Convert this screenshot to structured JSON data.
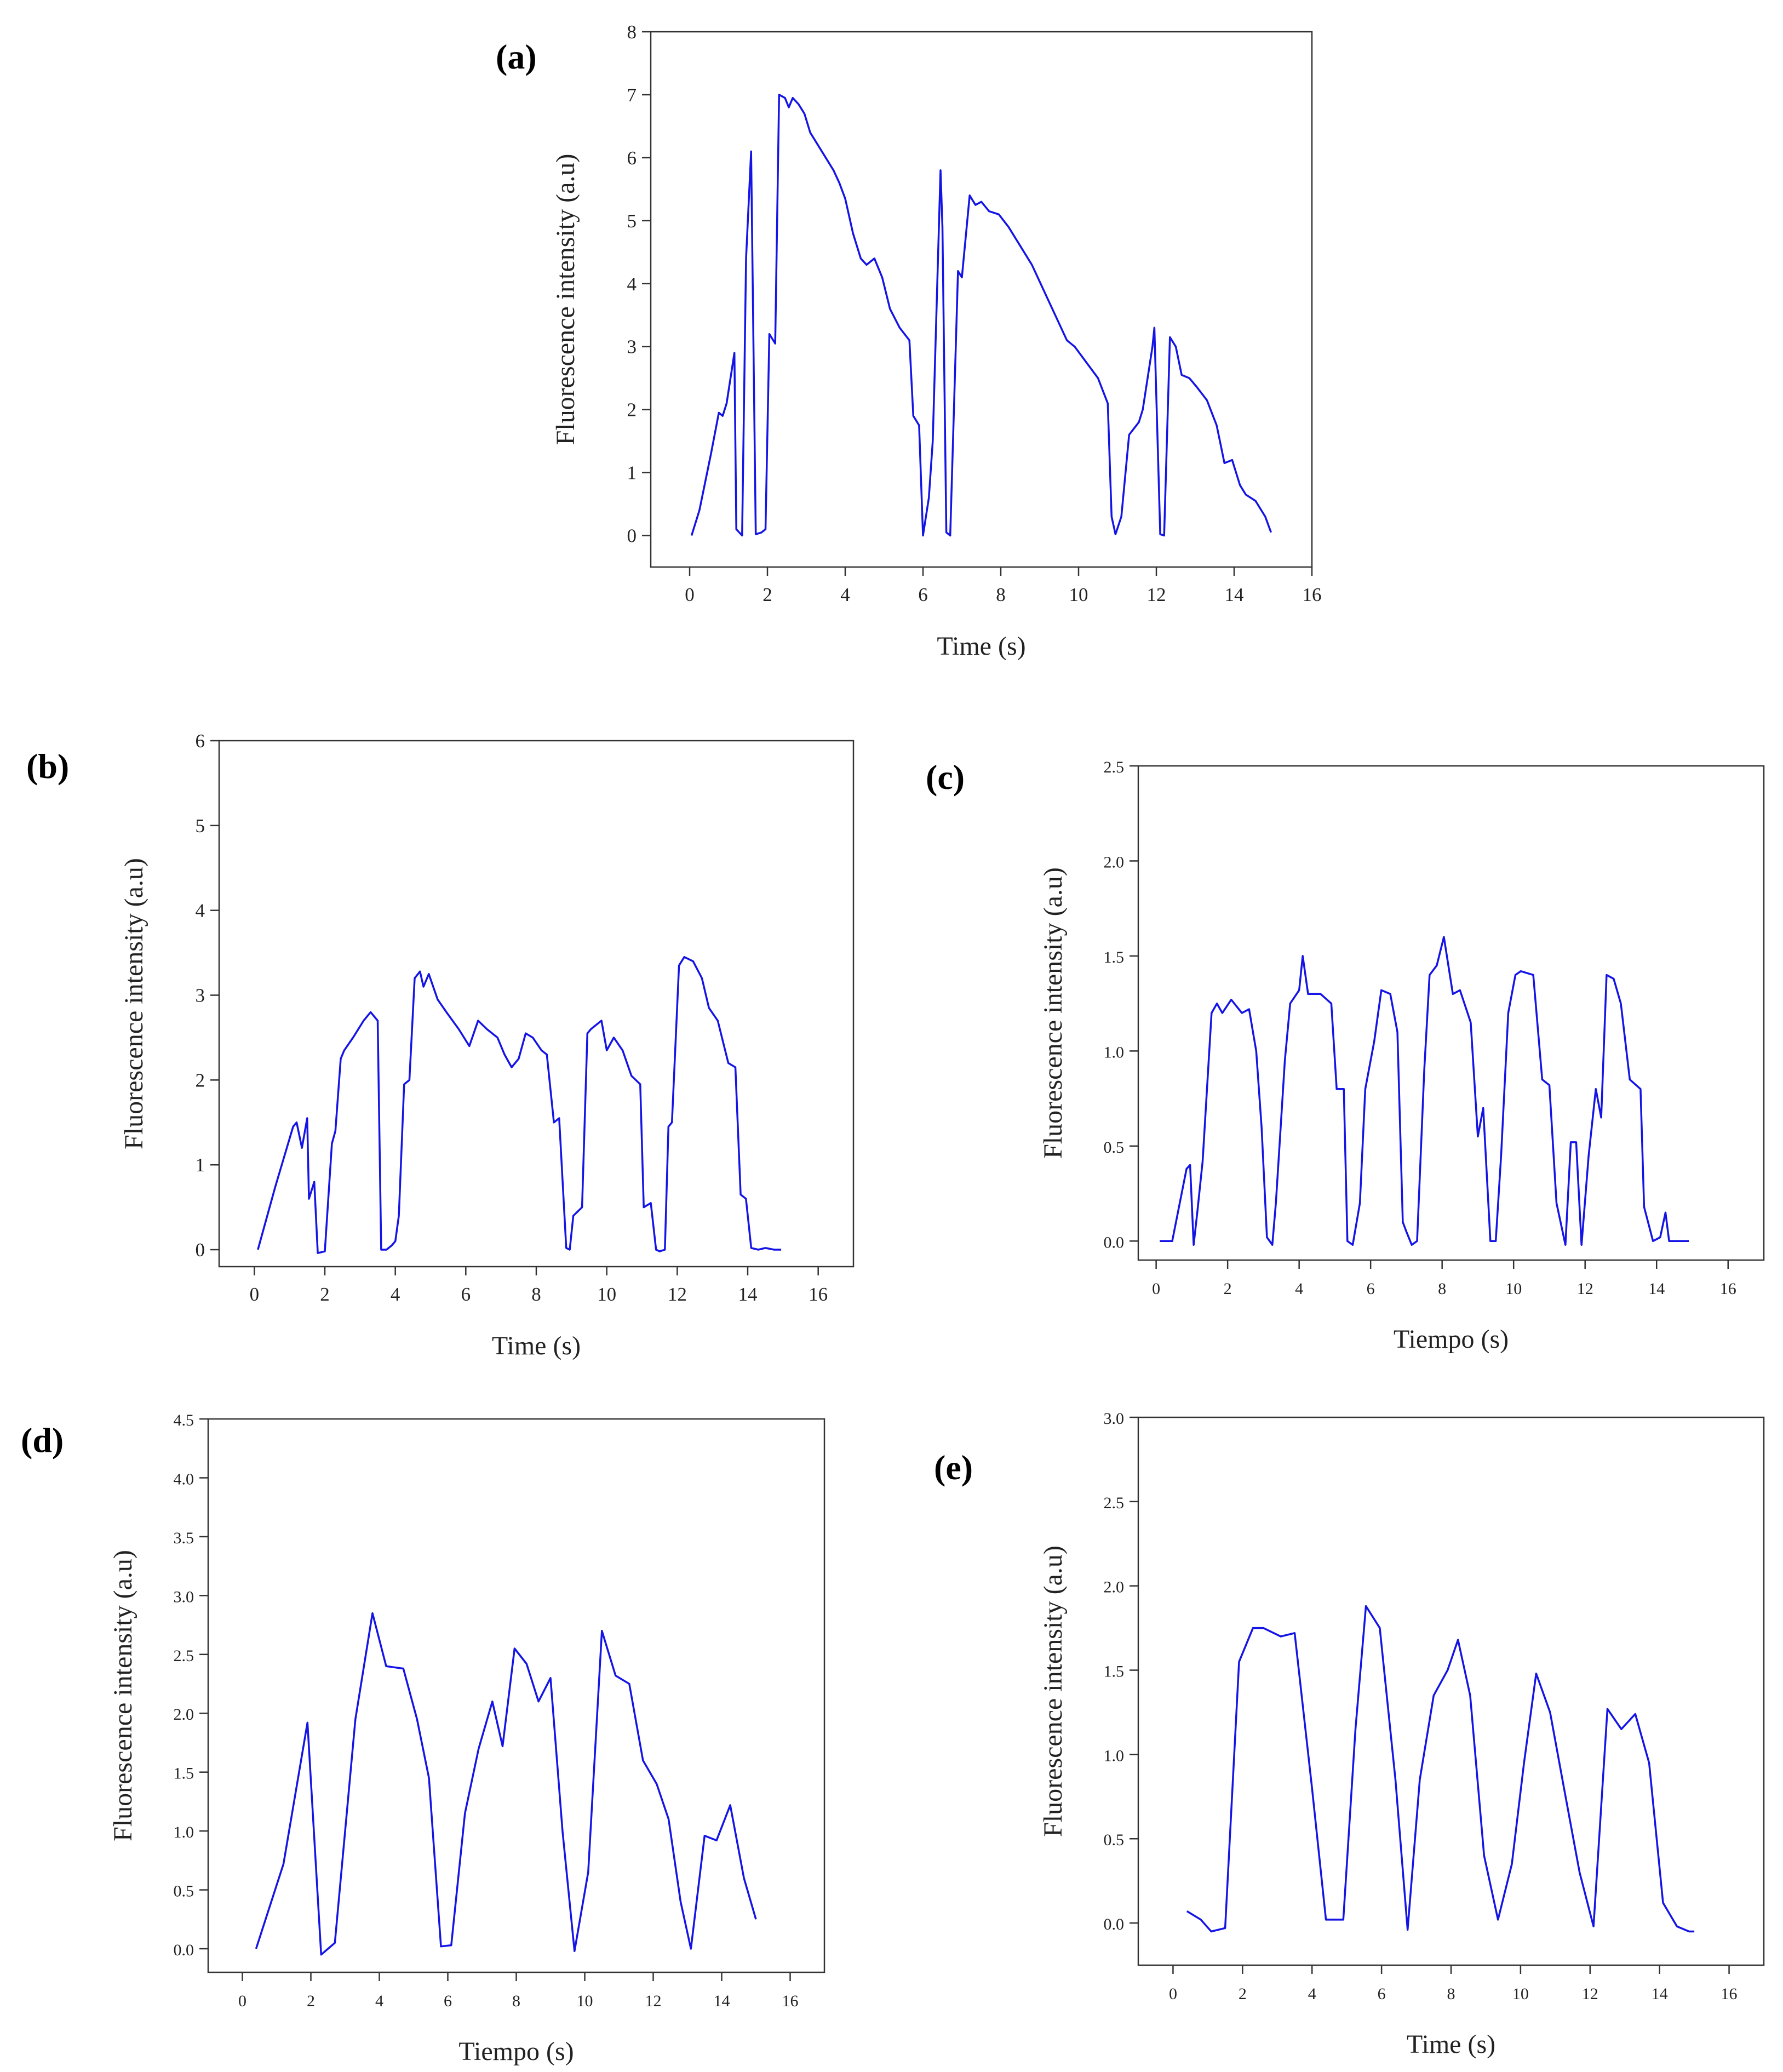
{
  "figure": {
    "line_color": "#1414e6",
    "frame_color": "#333333"
  },
  "chart_data": [
    {
      "id": "a",
      "panel_label": "(a)",
      "type": "line",
      "xlabel": "Time (s)",
      "ylabel": "Fluorescence intensity (a.u)",
      "xlim": [
        -1,
        16
      ],
      "ylim": [
        -0.5,
        8
      ],
      "xticks": [
        0,
        2,
        4,
        6,
        8,
        10,
        12,
        14,
        16
      ],
      "xtick_labels": [
        "0",
        "2",
        "4",
        "6",
        "8",
        "10",
        "12",
        "14",
        "16"
      ],
      "yticks": [
        0,
        1,
        2,
        3,
        4,
        5,
        6,
        7,
        8
      ],
      "ytick_labels": [
        "0",
        "1",
        "2",
        "3",
        "4",
        "5",
        "6",
        "7",
        "8"
      ],
      "x": [
        0.05,
        0.25,
        0.55,
        0.75,
        0.85,
        0.95,
        1.15,
        1.2,
        1.35,
        1.45,
        1.58,
        1.7,
        1.85,
        1.95,
        2.05,
        2.2,
        2.3,
        2.45,
        2.55,
        2.65,
        2.8,
        2.95,
        3.1,
        3.3,
        3.5,
        3.7,
        3.85,
        4.0,
        4.2,
        4.4,
        4.55,
        4.75,
        4.95,
        5.15,
        5.4,
        5.65,
        5.75,
        5.9,
        6.0,
        6.15,
        6.25,
        6.45,
        6.5,
        6.6,
        6.7,
        6.9,
        7.0,
        7.2,
        7.35,
        7.5,
        7.7,
        7.95,
        8.2,
        8.5,
        8.8,
        9.1,
        9.4,
        9.7,
        9.9,
        10.2,
        10.5,
        10.75,
        10.85,
        10.95,
        11.1,
        11.3,
        11.55,
        11.65,
        11.9,
        11.95,
        12.1,
        12.2,
        12.35,
        12.5,
        12.65,
        12.85,
        13.05,
        13.3,
        13.55,
        13.75,
        13.95,
        14.15,
        14.3,
        14.55,
        14.8,
        14.95
      ],
      "y": [
        0.0,
        0.4,
        1.3,
        1.95,
        1.9,
        2.1,
        2.9,
        0.1,
        0.0,
        4.4,
        6.1,
        0.02,
        0.05,
        0.1,
        3.2,
        3.05,
        7.0,
        6.95,
        6.8,
        6.95,
        6.85,
        6.7,
        6.4,
        6.2,
        6.0,
        5.8,
        5.6,
        5.35,
        4.8,
        4.4,
        4.3,
        4.4,
        4.1,
        3.6,
        3.3,
        3.1,
        1.9,
        1.75,
        0.0,
        0.6,
        1.5,
        5.8,
        4.9,
        0.05,
        0.0,
        4.2,
        4.1,
        5.4,
        5.25,
        5.3,
        5.15,
        5.1,
        4.9,
        4.6,
        4.3,
        3.9,
        3.5,
        3.1,
        3.0,
        2.75,
        2.5,
        2.1,
        0.3,
        0.02,
        0.3,
        1.6,
        1.8,
        2.0,
        3.0,
        3.3,
        0.02,
        0.0,
        3.15,
        3.0,
        2.55,
        2.5,
        2.35,
        2.15,
        1.75,
        1.15,
        1.2,
        0.8,
        0.65,
        0.55,
        0.3,
        0.05
      ]
    },
    {
      "id": "b",
      "panel_label": "(b)",
      "type": "line",
      "xlabel": "Time (s)",
      "ylabel": "Fluorescence intensity (a.u)",
      "xlim": [
        -1,
        17
      ],
      "ylim": [
        -0.2,
        6
      ],
      "xticks": [
        0,
        2,
        4,
        6,
        8,
        10,
        12,
        14,
        16
      ],
      "xtick_labels": [
        "0",
        "2",
        "4",
        "6",
        "8",
        "10",
        "12",
        "14",
        "16"
      ],
      "yticks": [
        0,
        1,
        2,
        3,
        4,
        5,
        6
      ],
      "ytick_labels": [
        "0",
        "1",
        "2",
        "3",
        "4",
        "5",
        "6"
      ],
      "x": [
        0.1,
        0.6,
        1.1,
        1.2,
        1.35,
        1.5,
        1.55,
        1.7,
        1.8,
        2.0,
        2.2,
        2.3,
        2.45,
        2.55,
        2.8,
        3.1,
        3.3,
        3.5,
        3.6,
        3.75,
        3.9,
        4.0,
        4.1,
        4.25,
        4.4,
        4.55,
        4.7,
        4.8,
        4.95,
        5.2,
        5.45,
        5.8,
        6.1,
        6.35,
        6.6,
        6.9,
        7.1,
        7.3,
        7.5,
        7.7,
        7.9,
        8.15,
        8.3,
        8.5,
        8.65,
        8.85,
        8.95,
        9.05,
        9.3,
        9.45,
        9.55,
        9.85,
        10.0,
        10.2,
        10.45,
        10.7,
        10.95,
        11.05,
        11.25,
        11.4,
        11.5,
        11.65,
        11.75,
        11.85,
        12.05,
        12.2,
        12.45,
        12.7,
        12.9,
        13.15,
        13.45,
        13.65,
        13.8,
        13.95,
        14.1,
        14.3,
        14.5,
        14.75,
        14.95
      ],
      "y": [
        0.0,
        0.75,
        1.45,
        1.5,
        1.2,
        1.55,
        0.6,
        0.8,
        -0.04,
        -0.02,
        1.25,
        1.4,
        2.25,
        2.35,
        2.5,
        2.7,
        2.8,
        2.7,
        0.0,
        0.0,
        0.05,
        0.1,
        0.4,
        1.95,
        2.0,
        3.2,
        3.28,
        3.1,
        3.25,
        2.95,
        2.8,
        2.6,
        2.4,
        2.7,
        2.6,
        2.5,
        2.3,
        2.15,
        2.25,
        2.55,
        2.5,
        2.35,
        2.3,
        1.5,
        1.55,
        0.02,
        0.0,
        0.4,
        0.5,
        2.55,
        2.6,
        2.7,
        2.35,
        2.5,
        2.35,
        2.05,
        1.95,
        0.5,
        0.55,
        0.0,
        -0.02,
        0.0,
        1.45,
        1.5,
        3.35,
        3.45,
        3.4,
        3.2,
        2.85,
        2.7,
        2.2,
        2.15,
        0.65,
        0.6,
        0.02,
        0.0,
        0.02,
        0.0,
        0.0
      ]
    },
    {
      "id": "c",
      "panel_label": "(c)",
      "type": "line",
      "xlabel": "Tiempo (s)",
      "ylabel": "Fluorescence intensity (a.u)",
      "xlim": [
        -0.5,
        17
      ],
      "ylim": [
        -0.1,
        2.5
      ],
      "xticks": [
        0,
        2,
        4,
        6,
        8,
        10,
        12,
        14,
        16
      ],
      "xtick_labels": [
        "0",
        "2",
        "4",
        "6",
        "8",
        "10",
        "12",
        "14",
        "16"
      ],
      "yticks": [
        0.0,
        0.5,
        1.0,
        1.5,
        2.0,
        2.5
      ],
      "ytick_labels": [
        "0.0",
        "0.5",
        "1.0",
        "1.5",
        "2.0",
        "2.5"
      ],
      "x": [
        0.1,
        0.45,
        0.85,
        0.95,
        1.05,
        1.15,
        1.3,
        1.55,
        1.7,
        1.85,
        2.1,
        2.4,
        2.6,
        2.8,
        2.95,
        3.1,
        3.25,
        3.35,
        3.45,
        3.6,
        3.75,
        4.0,
        4.1,
        4.25,
        4.6,
        4.9,
        5.05,
        5.25,
        5.35,
        5.5,
        5.7,
        5.85,
        6.1,
        6.3,
        6.55,
        6.75,
        6.9,
        7.0,
        7.15,
        7.3,
        7.5,
        7.65,
        7.85,
        8.05,
        8.3,
        8.5,
        8.8,
        9.0,
        9.15,
        9.35,
        9.5,
        9.65,
        9.85,
        10.05,
        10.2,
        10.55,
        10.8,
        11.0,
        11.2,
        11.45,
        11.6,
        11.75,
        11.9,
        12.1,
        12.3,
        12.45,
        12.6,
        12.8,
        13.0,
        13.25,
        13.55,
        13.65,
        13.9,
        14.1,
        14.25,
        14.35,
        14.6,
        14.9
      ],
      "y": [
        0.0,
        0.0,
        0.38,
        0.4,
        -0.02,
        0.15,
        0.42,
        1.2,
        1.25,
        1.2,
        1.27,
        1.2,
        1.22,
        1.0,
        0.6,
        0.02,
        -0.02,
        0.2,
        0.5,
        0.95,
        1.25,
        1.32,
        1.5,
        1.3,
        1.3,
        1.25,
        0.8,
        0.8,
        0.0,
        -0.02,
        0.2,
        0.8,
        1.05,
        1.32,
        1.3,
        1.1,
        0.1,
        0.05,
        -0.02,
        0.0,
        0.9,
        1.4,
        1.45,
        1.6,
        1.3,
        1.32,
        1.15,
        0.55,
        0.7,
        0.0,
        0.0,
        0.45,
        1.2,
        1.4,
        1.42,
        1.4,
        0.85,
        0.82,
        0.2,
        -0.02,
        0.52,
        0.52,
        -0.02,
        0.45,
        0.8,
        0.65,
        1.4,
        1.38,
        1.25,
        0.85,
        0.8,
        0.18,
        0.0,
        0.02,
        0.15,
        0.0,
        0.0,
        0.0
      ]
    },
    {
      "id": "d",
      "panel_label": "(d)",
      "type": "line",
      "xlabel": "Tiempo (s)",
      "ylabel": "Fluorescence intensity (a.u)",
      "xlim": [
        -1,
        17
      ],
      "ylim": [
        -0.2,
        4.5
      ],
      "xticks": [
        0,
        2,
        4,
        6,
        8,
        10,
        12,
        14,
        16
      ],
      "xtick_labels": [
        "0",
        "2",
        "4",
        "6",
        "8",
        "10",
        "12",
        "14",
        "16"
      ],
      "yticks": [
        0.0,
        0.5,
        1.0,
        1.5,
        2.0,
        2.5,
        3.0,
        3.5,
        4.0,
        4.5
      ],
      "ytick_labels": [
        "0.0",
        "0.5",
        "1.0",
        "1.5",
        "2.0",
        "2.5",
        "3.0",
        "3.5",
        "4.0",
        "4.5"
      ],
      "x": [
        0.4,
        1.2,
        1.9,
        2.3,
        2.7,
        3.3,
        3.8,
        4.2,
        4.7,
        5.1,
        5.45,
        5.8,
        6.1,
        6.5,
        6.9,
        7.3,
        7.6,
        7.95,
        8.3,
        8.65,
        9.0,
        9.35,
        9.7,
        10.1,
        10.5,
        10.9,
        11.3,
        11.7,
        12.1,
        12.45,
        12.8,
        13.1,
        13.5,
        13.85,
        14.25,
        14.65,
        15.0
      ],
      "y": [
        0.0,
        0.72,
        1.92,
        -0.05,
        0.05,
        1.95,
        2.85,
        2.4,
        2.38,
        1.95,
        1.45,
        0.02,
        0.03,
        1.15,
        1.7,
        2.1,
        1.72,
        2.55,
        2.42,
        2.1,
        2.3,
        1.0,
        -0.02,
        0.65,
        2.7,
        2.32,
        2.25,
        1.6,
        1.4,
        1.1,
        0.4,
        0.0,
        0.96,
        0.92,
        1.22,
        0.6,
        0.25
      ]
    },
    {
      "id": "e",
      "panel_label": "(e)",
      "type": "line",
      "xlabel": "Time (s)",
      "ylabel": "Fluorescence intensity (a.u)",
      "xlim": [
        -1,
        17
      ],
      "ylim": [
        -0.25,
        3.0
      ],
      "xticks": [
        0,
        2,
        4,
        6,
        8,
        10,
        12,
        14,
        16
      ],
      "xtick_labels": [
        "0",
        "2",
        "4",
        "6",
        "8",
        "10",
        "12",
        "14",
        "16"
      ],
      "yticks": [
        0.0,
        0.5,
        1.0,
        1.5,
        2.0,
        2.5,
        3.0
      ],
      "ytick_labels": [
        "0.0",
        "0.5",
        "1.0",
        "1.5",
        "2.0",
        "2.5",
        "3.0"
      ],
      "x": [
        0.4,
        0.8,
        1.1,
        1.5,
        1.9,
        2.3,
        2.6,
        3.1,
        3.5,
        4.0,
        4.4,
        4.9,
        5.25,
        5.55,
        5.95,
        6.4,
        6.75,
        7.1,
        7.5,
        7.9,
        8.2,
        8.55,
        8.95,
        9.35,
        9.75,
        10.1,
        10.45,
        10.85,
        11.25,
        11.7,
        12.1,
        12.5,
        12.9,
        13.3,
        13.7,
        14.1,
        14.5,
        14.85,
        15.0
      ],
      "y": [
        0.07,
        0.02,
        -0.05,
        -0.03,
        1.55,
        1.75,
        1.75,
        1.7,
        1.72,
        0.8,
        0.02,
        0.02,
        1.15,
        1.88,
        1.75,
        0.85,
        -0.04,
        0.85,
        1.35,
        1.5,
        1.68,
        1.35,
        0.4,
        0.02,
        0.35,
        0.95,
        1.48,
        1.25,
        0.8,
        0.3,
        -0.02,
        1.27,
        1.15,
        1.24,
        0.95,
        0.12,
        -0.02,
        -0.05,
        -0.05
      ]
    }
  ]
}
